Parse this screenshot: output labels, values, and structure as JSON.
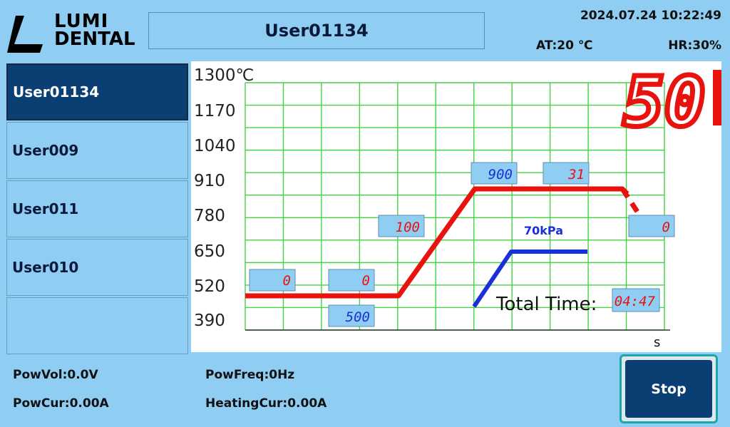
{
  "header": {
    "logo_line1": "LUMI",
    "logo_line2": "DENTAL",
    "program_title": "User01134",
    "datetime": "2024.07.24 10:22:49",
    "ambient_temp": "AT:20 ℃",
    "humidity": "HR:30%"
  },
  "users": [
    {
      "label": "User01134",
      "active": true
    },
    {
      "label": "User009",
      "active": false
    },
    {
      "label": "User011",
      "active": false
    },
    {
      "label": "User010",
      "active": false
    },
    {
      "label": "",
      "active": false
    }
  ],
  "chart": {
    "y_ticks": [
      "1300℃",
      "1170",
      "1040",
      "910",
      "780",
      "650",
      "520",
      "390"
    ],
    "x_unit": "s",
    "current_temp_display": "50",
    "vacuum_label": "70kPa",
    "total_time_label": "Total Time:",
    "total_time_value": "04:47",
    "setpoints": {
      "start_hold": "0",
      "dry_time": "0",
      "start_temp": "500",
      "heat_rate": "100",
      "final_temp": "900",
      "hold_time": "31",
      "cool_time": "0"
    }
  },
  "chart_data": {
    "type": "line",
    "xlabel": "s",
    "ylim": [
      390,
      1300
    ],
    "series": [
      {
        "values": [
          [
            0,
            500
          ],
          [
            1,
            500
          ],
          [
            2,
            500
          ],
          [
            3,
            900
          ],
          [
            4,
            900
          ],
          [
            5,
            800
          ]
        ]
      },
      {
        "name": "70kPa",
        "values": [
          [
            3,
            0
          ],
          [
            4,
            70
          ],
          [
            5,
            70
          ]
        ]
      }
    ]
  },
  "footer": {
    "pow_vol": "PowVol:0.0V",
    "pow_cur": "PowCur:0.00A",
    "pow_freq": "PowFreq:0Hz",
    "heating_cur": "HeatingCur:0.00A",
    "stop_label": "Stop"
  },
  "colors": {
    "background": "#8fcdf2",
    "active_item": "#0b3f74",
    "temp_curve": "#e8120f",
    "vacuum_curve": "#1a2fd6",
    "grid": "#43d343",
    "seven_segment": "#e8120f",
    "value_box": "#8fcdf2"
  }
}
